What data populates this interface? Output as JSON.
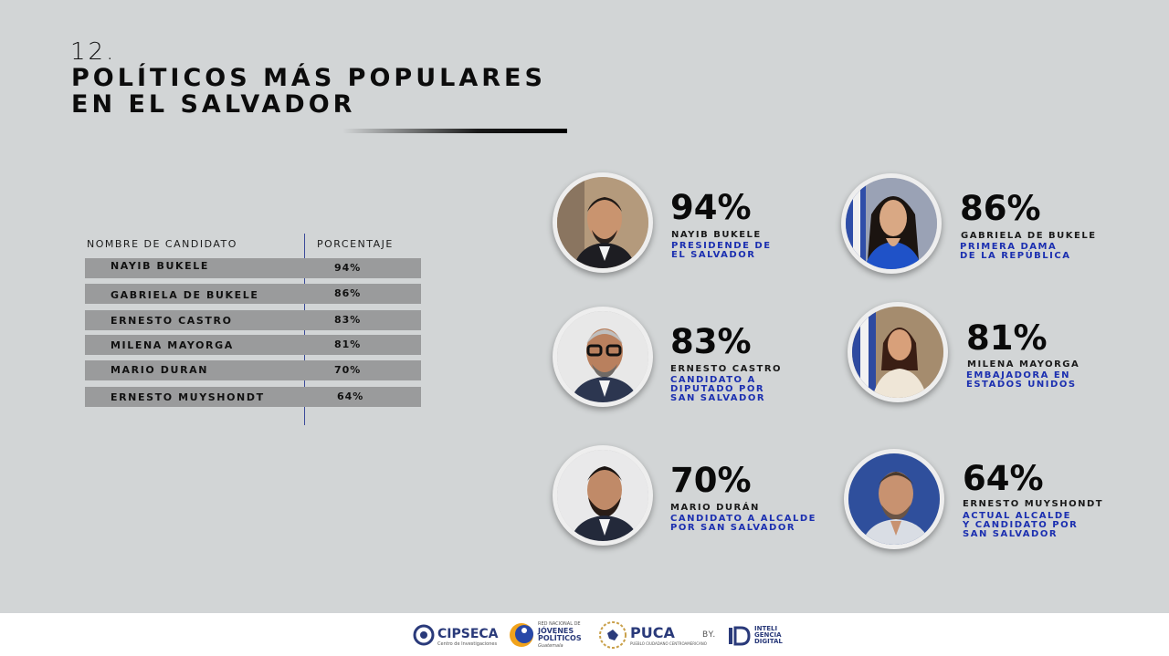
{
  "header": {
    "number": "12.",
    "title_line1": "POLÍTICOS MÁS POPULARES",
    "title_line2": "EN EL SALVADOR"
  },
  "table": {
    "col_name": "NOMBRE DE CANDIDATO",
    "col_pct": "PORCENTAJE",
    "rows": [
      {
        "name": "NAYIB BUKELE",
        "pct": "94%"
      },
      {
        "name": "GABRIELA DE BUKELE",
        "pct": "86%"
      },
      {
        "name": "ERNESTO CASTRO",
        "pct": "83%"
      },
      {
        "name": "MILENA MAYORGA",
        "pct": "81%"
      },
      {
        "name": "MARIO DURAN",
        "pct": "70%"
      },
      {
        "name": "ERNESTO MUYSHONDT",
        "pct": "64%"
      }
    ]
  },
  "cards": [
    {
      "pct": "94%",
      "name": "NAYIB BUKELE",
      "role": "PRESIDENDE DE\nEL SALVADOR"
    },
    {
      "pct": "86%",
      "name": "GABRIELA DE BUKELE",
      "role": "PRIMERA DAMA\nDE LA REPÚBLICA"
    },
    {
      "pct": "83%",
      "name": "ERNESTO CASTRO",
      "role": "CANDIDATO A\nDIPUTADO POR\nSAN SALVADOR"
    },
    {
      "pct": "81%",
      "name": "MILENA MAYORGA",
      "role": "EMBAJADORA EN\nESTADOS UNIDOS"
    },
    {
      "pct": "70%",
      "name": "MARIO DURÁN",
      "role": "CANDIDATO A ALCALDE\nPOR SAN SALVADOR"
    },
    {
      "pct": "64%",
      "name": "ERNESTO MUYSHONDT",
      "role": "ACTUAL ALCALDE\nY CANDIDATO POR\nSAN SALVADOR"
    }
  ],
  "footer": {
    "cipseca": "CIPSECA",
    "cipseca_sub": "Centro de Investigaciones",
    "jovenes_top": "RED NACIONAL DE",
    "jovenes_main": "JÓVENES\nPOLÍTICOS",
    "jovenes_sub": "Guatemala",
    "puca": "PUCA",
    "puca_sub": "PUEBLO CIUDADANO CENTROAMERICANO",
    "by": "BY.",
    "id_text": "INTELI\nGENCIA\nDIGITAL"
  },
  "colors": {
    "accent_blue": "#1b2fb0",
    "background": "#d2d5d6",
    "row_bar": "#9a9b9c"
  }
}
